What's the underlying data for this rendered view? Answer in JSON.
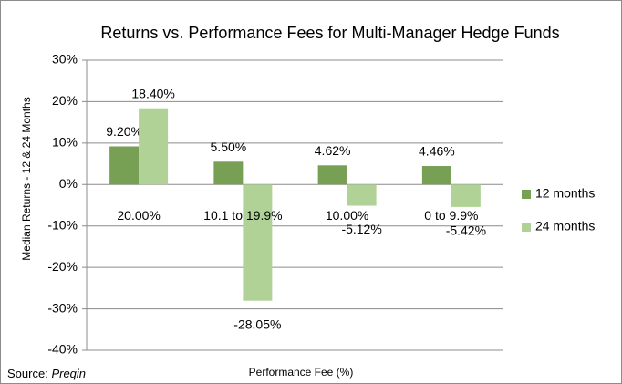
{
  "chart_data": {
    "type": "bar",
    "title": "Returns vs. Performance Fees for Multi-Manager Hedge Funds",
    "y_axis_label": "Median Returns  - 12 & 24 Months",
    "x_axis_label": "Performance Fee (%)",
    "source_label": "Source:",
    "source_name": "Preqin",
    "categories": [
      "20.00%",
      "10.1 to 19.9%",
      "10.00%",
      "0 to 9.9%"
    ],
    "series": [
      {
        "name": "12 months",
        "color": "#77a055",
        "values": [
          9.2,
          5.5,
          4.62,
          4.46
        ],
        "value_labels": [
          "9.20%",
          "5.50%",
          "4.62%",
          "4.46%"
        ]
      },
      {
        "name": "24 months",
        "color": "#b1d297",
        "values": [
          18.4,
          -28.05,
          -5.12,
          -5.42
        ],
        "value_labels": [
          "18.40%",
          "-28.05%",
          "-5.12%",
          "-5.42%"
        ]
      }
    ],
    "ylim": [
      -40,
      30
    ],
    "yticks": [
      {
        "value": -40,
        "label": "-40%"
      },
      {
        "value": -30,
        "label": "-30%"
      },
      {
        "value": -20,
        "label": "-20%"
      },
      {
        "value": -10,
        "label": "-10%"
      },
      {
        "value": 0,
        "label": "0%"
      },
      {
        "value": 10,
        "label": "10%"
      },
      {
        "value": 20,
        "label": "20%"
      },
      {
        "value": 30,
        "label": "30%"
      }
    ],
    "grid": true,
    "legend": "right"
  }
}
